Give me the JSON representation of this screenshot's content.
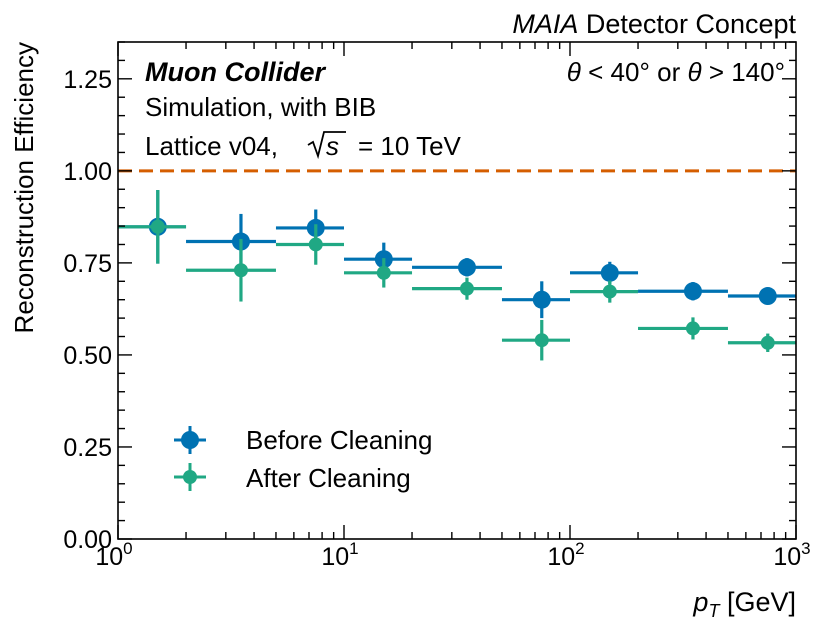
{
  "chart_data": {
    "type": "scatter",
    "experiment_label": "MAIA",
    "title_suffix": "Detector Concept",
    "xlabel_var": "p",
    "xlabel_sub": "T",
    "xlabel_unit": "[GeV]",
    "ylabel": "Reconstruction Efficiency",
    "xscale": "log",
    "xlim": [
      1,
      1000
    ],
    "ylim": [
      0,
      1.35
    ],
    "x_tick_labels": [
      {
        "base": "10",
        "exp": "0",
        "value": 1
      },
      {
        "base": "10",
        "exp": "1",
        "value": 10
      },
      {
        "base": "10",
        "exp": "2",
        "value": 100
      },
      {
        "base": "10",
        "exp": "3",
        "value": 1000
      }
    ],
    "y_ticks": [
      0,
      0.25,
      0.5,
      0.75,
      1.0,
      1.25
    ],
    "y_tick_labels": [
      "0.00",
      "0.25",
      "0.50",
      "0.75",
      "1.00",
      "1.25"
    ],
    "annotations": {
      "line1": "Muon Collider",
      "line2": "Simulation, with BIB",
      "line3_prefix": "Lattice v04,",
      "line3_sqrt": "s",
      "line3_suffix": "= 10 TeV",
      "cut_theta1": "θ",
      "cut_lt": "< 40°",
      "cut_or": "or",
      "cut_theta2": "θ",
      "cut_gt": "> 140°"
    },
    "reference_line": {
      "y": 1.0,
      "style": "dashed",
      "color": "#d55e00"
    },
    "legend_position": "lower-left",
    "series": [
      {
        "name": "Before Cleaning",
        "color": "#0072b2",
        "points": [
          {
            "x": 1.5,
            "xlo": 1,
            "xhi": 2,
            "y": 0.848,
            "yerr": 0.1
          },
          {
            "x": 3.5,
            "xlo": 2,
            "xhi": 5,
            "y": 0.808,
            "yerr": 0.075
          },
          {
            "x": 7.5,
            "xlo": 5,
            "xhi": 10,
            "y": 0.845,
            "yerr": 0.05
          },
          {
            "x": 15,
            "xlo": 10,
            "xhi": 20,
            "y": 0.76,
            "yerr": 0.045
          },
          {
            "x": 35,
            "xlo": 20,
            "xhi": 50,
            "y": 0.738,
            "yerr": 0.025
          },
          {
            "x": 75,
            "xlo": 50,
            "xhi": 100,
            "y": 0.65,
            "yerr": 0.05
          },
          {
            "x": 150,
            "xlo": 100,
            "xhi": 200,
            "y": 0.723,
            "yerr": 0.03
          },
          {
            "x": 350,
            "xlo": 200,
            "xhi": 500,
            "y": 0.673,
            "yerr": 0.025
          },
          {
            "x": 750,
            "xlo": 500,
            "xhi": 1000,
            "y": 0.66,
            "yerr": 0.02
          }
        ]
      },
      {
        "name": "After Cleaning",
        "color": "#20a884",
        "points": [
          {
            "x": 1.5,
            "xlo": 1,
            "xhi": 2,
            "y": 0.848,
            "yerr": 0.1
          },
          {
            "x": 3.5,
            "xlo": 2,
            "xhi": 5,
            "y": 0.73,
            "yerr": 0.085
          },
          {
            "x": 7.5,
            "xlo": 5,
            "xhi": 10,
            "y": 0.8,
            "yerr": 0.055
          },
          {
            "x": 15,
            "xlo": 10,
            "xhi": 20,
            "y": 0.723,
            "yerr": 0.04
          },
          {
            "x": 35,
            "xlo": 20,
            "xhi": 50,
            "y": 0.68,
            "yerr": 0.03
          },
          {
            "x": 75,
            "xlo": 50,
            "xhi": 100,
            "y": 0.54,
            "yerr": 0.055
          },
          {
            "x": 150,
            "xlo": 100,
            "xhi": 200,
            "y": 0.672,
            "yerr": 0.03
          },
          {
            "x": 350,
            "xlo": 200,
            "xhi": 500,
            "y": 0.572,
            "yerr": 0.03
          },
          {
            "x": 750,
            "xlo": 500,
            "xhi": 1000,
            "y": 0.533,
            "yerr": 0.025
          }
        ]
      }
    ]
  }
}
